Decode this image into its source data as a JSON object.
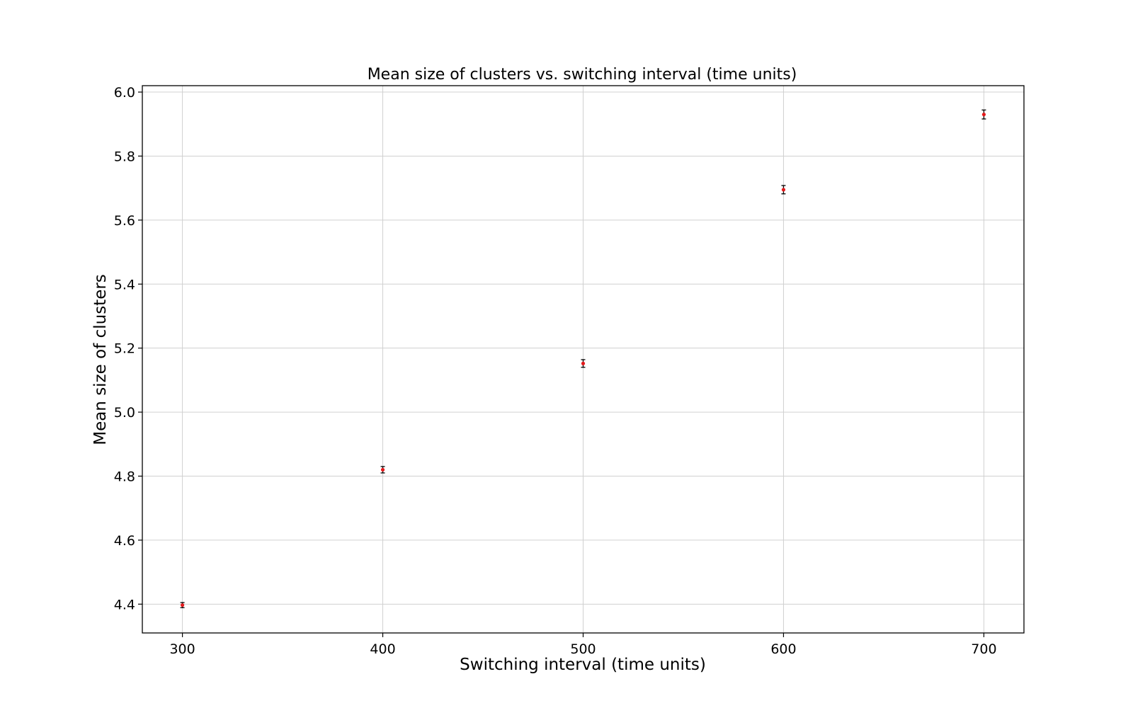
{
  "chart_data": {
    "type": "scatter",
    "title": "Mean size of clusters vs. switching interval (time units)",
    "xlabel": "Switching interval (time units)",
    "ylabel": "Mean size of clusters",
    "xlim": [
      280,
      720
    ],
    "ylim": [
      4.31,
      6.02
    ],
    "xticks": [
      300,
      400,
      500,
      600,
      700
    ],
    "xtick_labels": [
      "300",
      "400",
      "500",
      "600",
      "700"
    ],
    "yticks": [
      4.4,
      4.6,
      4.8,
      5.0,
      5.2,
      5.4,
      5.6,
      5.8,
      6.0
    ],
    "ytick_labels": [
      "4.4",
      "4.6",
      "4.8",
      "5.0",
      "5.2",
      "5.4",
      "5.6",
      "5.8",
      "6.0"
    ],
    "grid": true,
    "series": [
      {
        "x": [
          300,
          400,
          500,
          600,
          700
        ],
        "y": [
          4.397,
          4.82,
          5.152,
          5.695,
          5.93
        ],
        "yerr": [
          0.008,
          0.01,
          0.012,
          0.013,
          0.014
        ],
        "marker_color": "#e31a1c",
        "errorbar_color": "#000000"
      }
    ]
  }
}
